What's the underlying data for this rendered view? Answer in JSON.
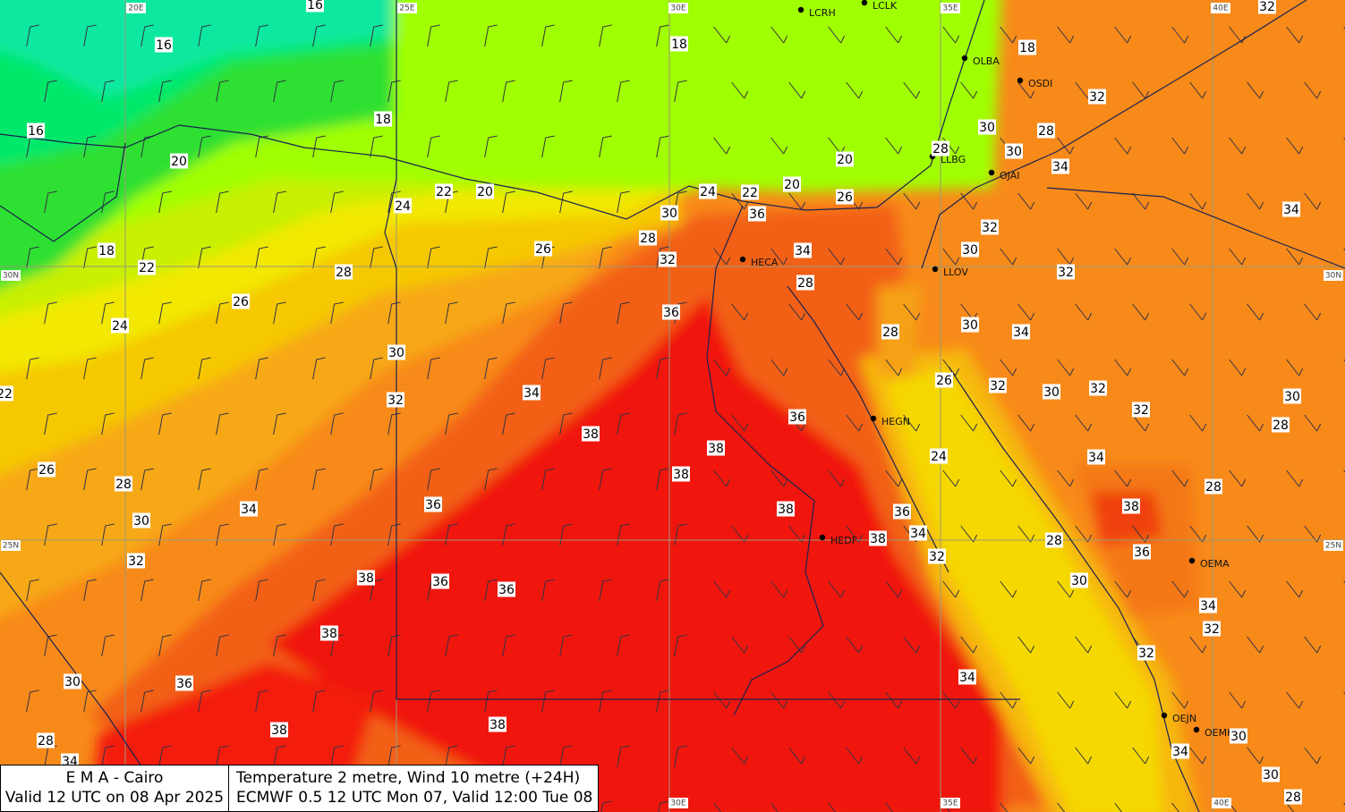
{
  "map": {
    "grid_labels": {
      "top": [
        "20E",
        "25E",
        "30E",
        "35E",
        "40E"
      ],
      "bottom": [
        "30E",
        "35E",
        "40E"
      ],
      "left": [
        "30N",
        "25N"
      ],
      "right": [
        "30N",
        "25N"
      ]
    },
    "stations": [
      "LCRH",
      "LCLK",
      "OLBA",
      "OSDI",
      "LLBG",
      "OJAI",
      "HECA",
      "LLOV",
      "HEGN",
      "HEDF",
      "OEMA",
      "OEJN",
      "OEMK"
    ],
    "temperature_labels": [
      16,
      16,
      16,
      18,
      18,
      18,
      20,
      22,
      20,
      24,
      20,
      20,
      24,
      22,
      26,
      30,
      36,
      28,
      26,
      32,
      18,
      22,
      28,
      26,
      34,
      28,
      36,
      24,
      30,
      32,
      34,
      22,
      38,
      36,
      38,
      38,
      26,
      28,
      30,
      34,
      36,
      38,
      36,
      38,
      34,
      32,
      32,
      38,
      36,
      36,
      38,
      30,
      36,
      28,
      34,
      38,
      38,
      34,
      28,
      30,
      30,
      28,
      32,
      34,
      32,
      34,
      32,
      30,
      32,
      28,
      30,
      34,
      26,
      32,
      30,
      32,
      32,
      30,
      28,
      24,
      34,
      28,
      38,
      28,
      36,
      30,
      34,
      32,
      32,
      34,
      30,
      30,
      28
    ]
  },
  "footer": {
    "left": [
      "E M A  -  Cairo",
      "Valid 12 UTC on 08 Apr 2025"
    ],
    "right": [
      "Temperature  2 metre, Wind  10 metre (+24H)",
      "ECMWF 0.5 12 UTC Mon 07, Valid 12:00 Tue 08"
    ]
  }
}
